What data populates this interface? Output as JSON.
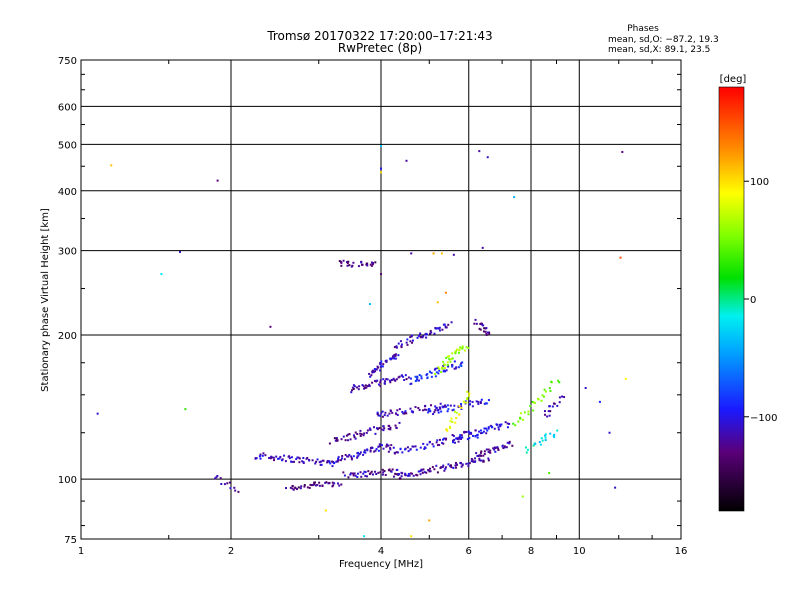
{
  "chart_data": {
    "type": "scatter",
    "title": "Tromsø 20170322 17:20:00–17:21:43",
    "subtitle": "RwPretec (8p)",
    "xlabel": "Frequency [MHz]",
    "ylabel": "Stationary phase Virtual Height [km]",
    "x_scale": "log",
    "y_scale": "log",
    "xlim": [
      1,
      16
    ],
    "ylim": [
      75,
      750
    ],
    "grid": true,
    "x_ticks": [
      {
        "value": 1,
        "label": "1"
      },
      {
        "value": 2,
        "label": "2"
      },
      {
        "value": 4,
        "label": "4"
      },
      {
        "value": 6,
        "label": "6"
      },
      {
        "value": 8,
        "label": "8"
      },
      {
        "value": 10,
        "label": "10"
      },
      {
        "value": 16,
        "label": "16"
      }
    ],
    "y_ticks": [
      {
        "value": 75,
        "label": "75"
      },
      {
        "value": 100,
        "label": "100"
      },
      {
        "value": 200,
        "label": "200"
      },
      {
        "value": 300,
        "label": "300"
      },
      {
        "value": 400,
        "label": "400"
      },
      {
        "value": 500,
        "label": "500"
      },
      {
        "value": 600,
        "label": "600"
      },
      {
        "value": 750,
        "label": "750"
      }
    ],
    "stats": {
      "header": "Phases",
      "line_o": "mean, sd,O: −87.2, 19.3",
      "line_x": "mean, sd,X:  89.1, 23.5"
    },
    "colorbar": {
      "label": "[deg]",
      "range": [
        -180,
        180
      ],
      "ticks": [
        {
          "value": 100,
          "label": "100"
        },
        {
          "value": 0,
          "label": "0"
        },
        {
          "value": -100,
          "label": "−100"
        }
      ]
    },
    "traces": [
      {
        "x_start": 1.85,
        "x_end": 2.05,
        "y_start": 101,
        "y_end": 95,
        "phase": -120,
        "density": 6
      },
      {
        "x_start": 2.6,
        "x_end": 3.3,
        "y_start": 96,
        "y_end": 98,
        "phase": -130,
        "density": 20
      },
      {
        "x_start": 2.25,
        "x_end": 3.2,
        "y_start": 112,
        "y_end": 108,
        "phase": -115,
        "density": 30
      },
      {
        "x_start": 3.2,
        "x_end": 4.2,
        "y_start": 109,
        "y_end": 118,
        "phase": -110,
        "density": 28
      },
      {
        "x_start": 3.2,
        "x_end": 4.3,
        "y_start": 120,
        "y_end": 130,
        "phase": -125,
        "density": 25
      },
      {
        "x_start": 3.4,
        "x_end": 4.4,
        "y_start": 102,
        "y_end": 104,
        "phase": -120,
        "density": 22
      },
      {
        "x_start": 4.3,
        "x_end": 6.5,
        "y_start": 101,
        "y_end": 110,
        "phase": -120,
        "density": 40
      },
      {
        "x_start": 6.2,
        "x_end": 7.3,
        "y_start": 112,
        "y_end": 118,
        "phase": -120,
        "density": 18
      },
      {
        "x_start": 4.2,
        "x_end": 6.3,
        "y_start": 114,
        "y_end": 124,
        "phase": -110,
        "density": 30
      },
      {
        "x_start": 5.6,
        "x_end": 7.2,
        "y_start": 122,
        "y_end": 130,
        "phase": -105,
        "density": 22
      },
      {
        "x_start": 3.9,
        "x_end": 5.3,
        "y_start": 136,
        "y_end": 142,
        "phase": -115,
        "density": 26
      },
      {
        "x_start": 5.0,
        "x_end": 6.5,
        "y_start": 138,
        "y_end": 146,
        "phase": -100,
        "density": 22
      },
      {
        "x_start": 3.5,
        "x_end": 4.5,
        "y_start": 154,
        "y_end": 164,
        "phase": -120,
        "density": 24
      },
      {
        "x_start": 3.8,
        "x_end": 4.3,
        "y_start": 166,
        "y_end": 182,
        "phase": -110,
        "density": 20
      },
      {
        "x_start": 4.3,
        "x_end": 5.5,
        "y_start": 190,
        "y_end": 210,
        "phase": -115,
        "density": 24
      },
      {
        "x_start": 4.6,
        "x_end": 5.8,
        "y_start": 160,
        "y_end": 175,
        "phase": -95,
        "density": 24
      },
      {
        "x_start": 5.2,
        "x_end": 5.9,
        "y_start": 168,
        "y_end": 190,
        "phase": 60,
        "density": 18
      },
      {
        "x_start": 5.4,
        "x_end": 6.0,
        "y_start": 126,
        "y_end": 150,
        "phase": 80,
        "density": 12
      },
      {
        "x_start": 3.3,
        "x_end": 3.9,
        "y_start": 282,
        "y_end": 280,
        "phase": -125,
        "density": 14
      },
      {
        "x_start": 6.2,
        "x_end": 6.6,
        "y_start": 212,
        "y_end": 200,
        "phase": -130,
        "density": 10
      },
      {
        "x_start": 7.4,
        "x_end": 9.0,
        "y_start": 130,
        "y_end": 160,
        "phase": 50,
        "density": 14
      },
      {
        "x_start": 7.9,
        "x_end": 8.9,
        "y_start": 115,
        "y_end": 125,
        "phase": -20,
        "density": 10
      },
      {
        "x_start": 8.5,
        "x_end": 9.2,
        "y_start": 135,
        "y_end": 148,
        "phase": -120,
        "density": 8
      }
    ],
    "points": [
      {
        "x": 1.15,
        "y": 452,
        "phase": 110
      },
      {
        "x": 1.58,
        "y": 298,
        "phase": -110
      },
      {
        "x": 1.88,
        "y": 420,
        "phase": -130
      },
      {
        "x": 1.45,
        "y": 268,
        "phase": -20
      },
      {
        "x": 1.62,
        "y": 140,
        "phase": 30
      },
      {
        "x": 1.08,
        "y": 137,
        "phase": -110
      },
      {
        "x": 2.4,
        "y": 208,
        "phase": -130
      },
      {
        "x": 4.0,
        "y": 496,
        "phase": -30
      },
      {
        "x": 4.0,
        "y": 445,
        "phase": -100
      },
      {
        "x": 4.0,
        "y": 437,
        "phase": 100
      },
      {
        "x": 4.5,
        "y": 462,
        "phase": -120
      },
      {
        "x": 4.6,
        "y": 296,
        "phase": -120
      },
      {
        "x": 4.0,
        "y": 268,
        "phase": -130
      },
      {
        "x": 6.3,
        "y": 484,
        "phase": -120
      },
      {
        "x": 6.55,
        "y": 470,
        "phase": -110
      },
      {
        "x": 7.4,
        "y": 388,
        "phase": -40
      },
      {
        "x": 6.4,
        "y": 304,
        "phase": -120
      },
      {
        "x": 12.2,
        "y": 482,
        "phase": -130
      },
      {
        "x": 12.1,
        "y": 290,
        "phase": 150
      },
      {
        "x": 5.3,
        "y": 296,
        "phase": 110
      },
      {
        "x": 5.1,
        "y": 296,
        "phase": 120
      },
      {
        "x": 5.6,
        "y": 294,
        "phase": -120
      },
      {
        "x": 5.4,
        "y": 245,
        "phase": 130
      },
      {
        "x": 5.2,
        "y": 234,
        "phase": 110
      },
      {
        "x": 3.8,
        "y": 232,
        "phase": -40
      },
      {
        "x": 11.8,
        "y": 96,
        "phase": -110
      },
      {
        "x": 11.5,
        "y": 125,
        "phase": -110
      },
      {
        "x": 11.0,
        "y": 145,
        "phase": -90
      },
      {
        "x": 12.4,
        "y": 162,
        "phase": 90
      },
      {
        "x": 10.3,
        "y": 155,
        "phase": -110
      },
      {
        "x": 8.7,
        "y": 103,
        "phase": 40
      },
      {
        "x": 7.7,
        "y": 92,
        "phase": 60
      },
      {
        "x": 4.6,
        "y": 76,
        "phase": 100
      },
      {
        "x": 5.0,
        "y": 82,
        "phase": 120
      },
      {
        "x": 3.1,
        "y": 86,
        "phase": 100
      },
      {
        "x": 3.7,
        "y": 76,
        "phase": -20
      }
    ]
  }
}
